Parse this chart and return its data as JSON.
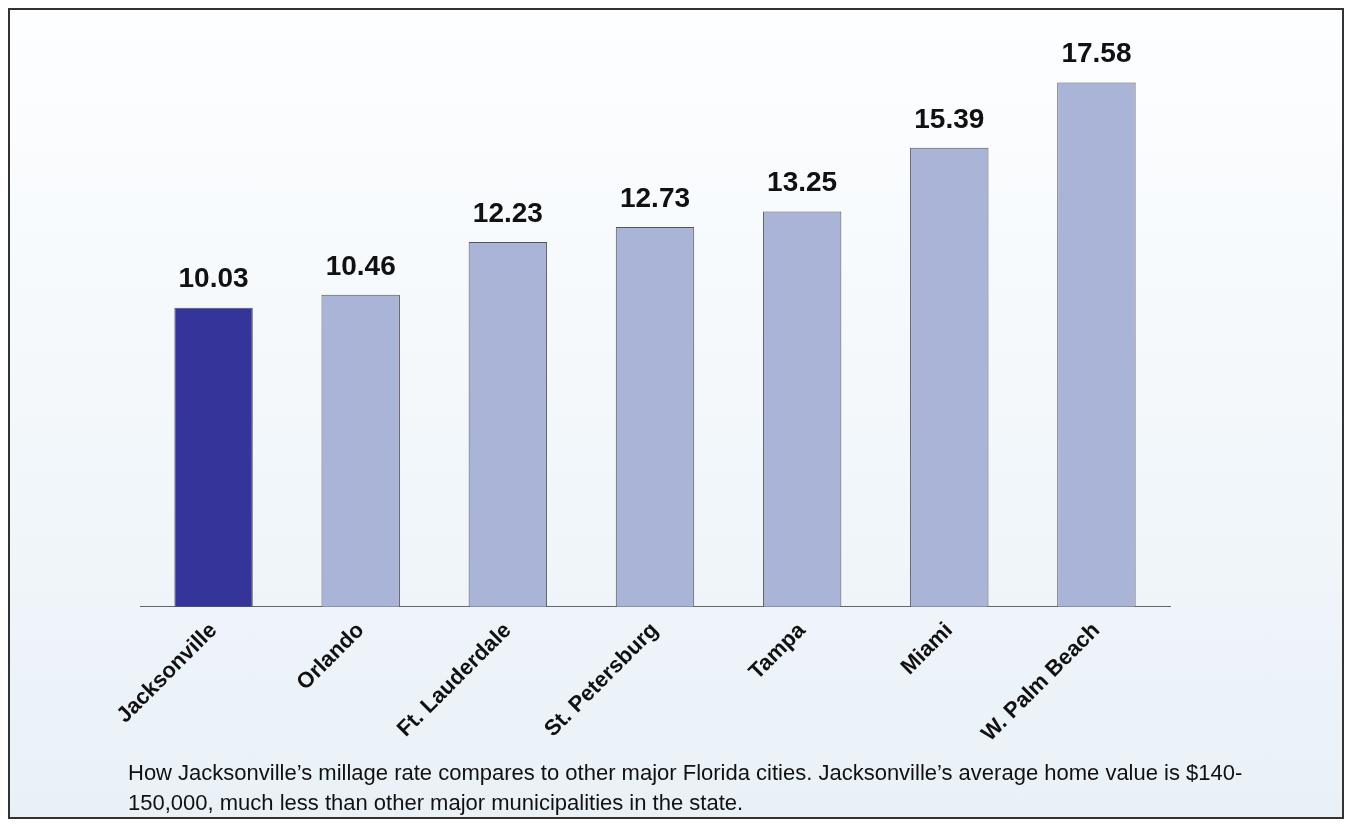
{
  "chart_data": {
    "type": "bar",
    "categories": [
      "Jacksonville",
      "Orlando",
      "Ft. Lauderdale",
      "St. Petersburg",
      "Tampa",
      "Miami",
      "W. Palm Beach"
    ],
    "values": [
      10.03,
      10.46,
      12.23,
      12.73,
      13.25,
      15.39,
      17.58
    ],
    "colors": [
      "#34349a",
      "#aab4d6",
      "#aab4d6",
      "#aab4d6",
      "#aab4d6",
      "#aab4d6",
      "#aab4d6"
    ],
    "data_labels": true,
    "grid": false,
    "legend": false,
    "annotations": [
      "How Jacksonville’s millage rate compares to other major Florida cities. Jacksonville’s average home value is $140-150,000, much less than other major municipalities in the state."
    ]
  }
}
